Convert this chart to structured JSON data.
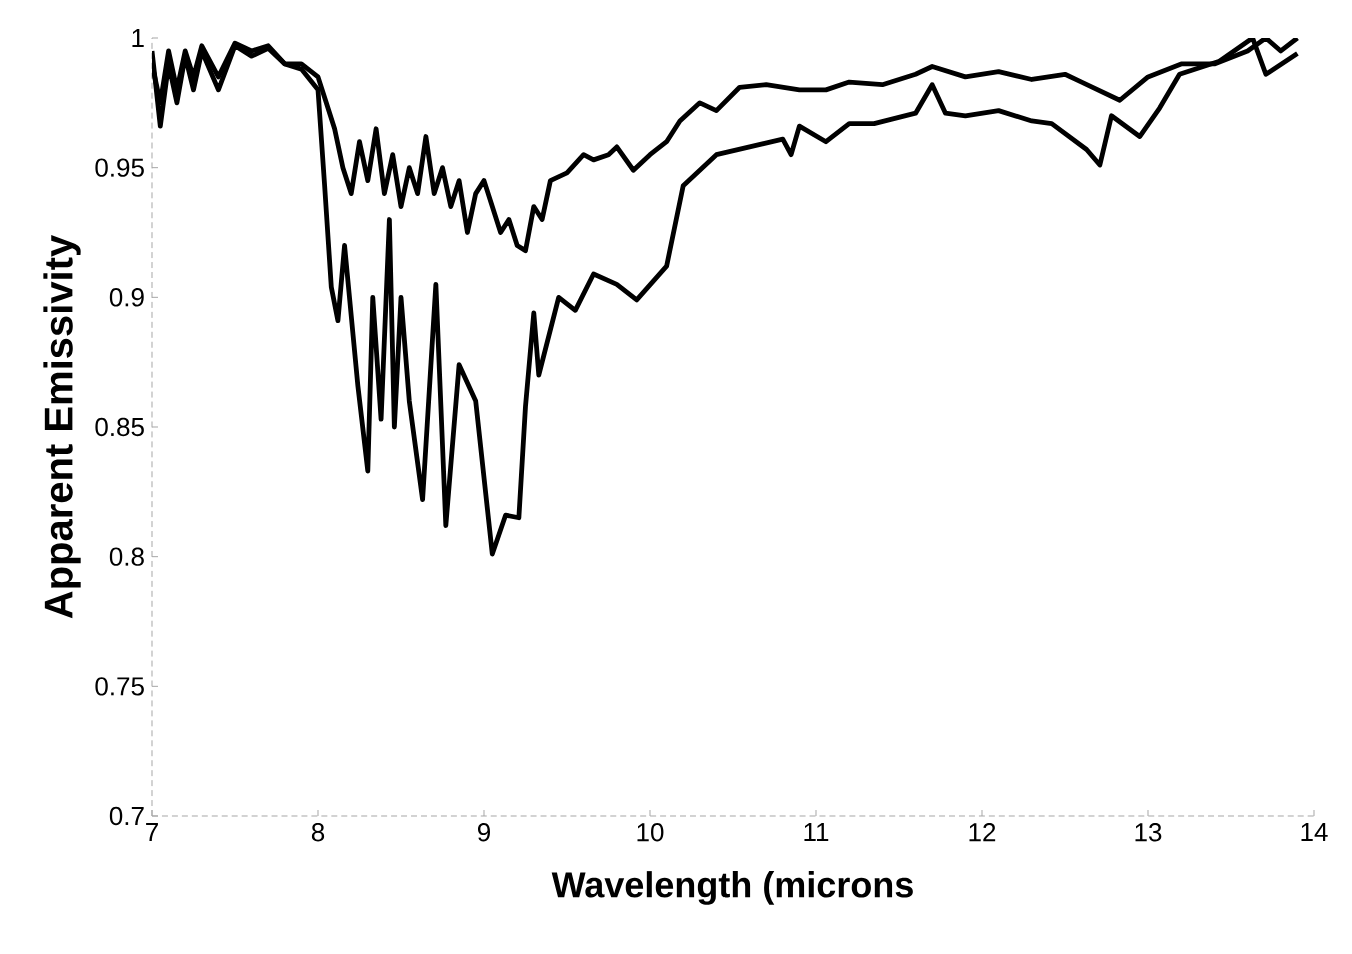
{
  "chart_data": {
    "type": "line",
    "xlabel": "Wavelength (microns",
    "ylabel": "Apparent Emissivity",
    "xlim": [
      7,
      14
    ],
    "ylim": [
      0.7,
      1
    ],
    "xticks": [
      7,
      8,
      9,
      10,
      11,
      12,
      13,
      14
    ],
    "yticks": [
      0.7,
      0.75,
      0.8,
      0.85,
      0.9,
      0.95,
      1
    ],
    "grid": false,
    "marker": "none",
    "line_style": "solid",
    "series": [
      {
        "color": "#000000",
        "x": [
          7.0,
          7.05,
          7.1,
          7.15,
          7.2,
          7.25,
          7.3,
          7.4,
          7.5,
          7.6,
          7.7,
          7.8,
          7.9,
          8.0,
          8.05,
          8.1,
          8.15,
          8.2,
          8.25,
          8.3,
          8.35,
          8.4,
          8.45,
          8.5,
          8.55,
          8.6,
          8.65,
          8.7,
          8.75,
          8.8,
          8.85,
          8.9,
          8.95,
          9.0,
          9.05,
          9.1,
          9.15,
          9.2,
          9.25,
          9.3,
          9.35,
          9.4,
          9.5,
          9.6,
          9.66,
          9.75,
          9.8,
          9.9,
          10.0,
          10.1,
          10.18,
          10.3,
          10.4,
          10.54,
          10.7,
          10.9,
          11.06,
          11.2,
          11.4,
          11.6,
          11.7,
          11.9,
          12.1,
          12.3,
          12.5,
          12.6,
          12.83,
          13.0,
          13.2,
          13.4,
          13.6,
          13.71,
          13.8,
          13.9
        ],
        "values": [
          0.99,
          0.975,
          0.995,
          0.98,
          0.995,
          0.985,
          0.997,
          0.985,
          0.998,
          0.995,
          0.997,
          0.99,
          0.99,
          0.985,
          0.975,
          0.965,
          0.95,
          0.94,
          0.96,
          0.945,
          0.965,
          0.94,
          0.955,
          0.935,
          0.95,
          0.94,
          0.962,
          0.94,
          0.95,
          0.935,
          0.945,
          0.925,
          0.94,
          0.945,
          0.935,
          0.925,
          0.93,
          0.92,
          0.918,
          0.935,
          0.93,
          0.945,
          0.948,
          0.955,
          0.953,
          0.955,
          0.958,
          0.949,
          0.955,
          0.96,
          0.968,
          0.975,
          0.972,
          0.981,
          0.982,
          0.98,
          0.98,
          0.983,
          0.982,
          0.986,
          0.989,
          0.985,
          0.987,
          0.984,
          0.986,
          0.983,
          0.976,
          0.985,
          0.99,
          0.99,
          0.995,
          1.0,
          0.995,
          1.0
        ]
      },
      {
        "color": "#000000",
        "x": [
          7.0,
          7.05,
          7.1,
          7.15,
          7.2,
          7.25,
          7.3,
          7.4,
          7.5,
          7.6,
          7.7,
          7.8,
          7.9,
          8.0,
          8.04,
          8.08,
          8.12,
          8.16,
          8.24,
          8.3,
          8.33,
          8.38,
          8.43,
          8.46,
          8.5,
          8.55,
          8.63,
          8.71,
          8.77,
          8.85,
          8.95,
          9.05,
          9.13,
          9.21,
          9.25,
          9.3,
          9.33,
          9.45,
          9.55,
          9.66,
          9.8,
          9.92,
          10.1,
          10.2,
          10.4,
          10.6,
          10.8,
          10.85,
          10.9,
          11.06,
          11.2,
          11.35,
          11.6,
          11.7,
          11.78,
          11.9,
          12.1,
          12.3,
          12.42,
          12.63,
          12.71,
          12.78,
          12.95,
          13.07,
          13.19,
          13.43,
          13.63,
          13.71,
          13.9
        ],
        "values": [
          0.995,
          0.966,
          0.99,
          0.975,
          0.993,
          0.98,
          0.995,
          0.98,
          0.997,
          0.993,
          0.996,
          0.99,
          0.988,
          0.98,
          0.943,
          0.904,
          0.891,
          0.92,
          0.866,
          0.833,
          0.9,
          0.853,
          0.93,
          0.85,
          0.9,
          0.86,
          0.822,
          0.905,
          0.812,
          0.874,
          0.86,
          0.801,
          0.816,
          0.815,
          0.858,
          0.894,
          0.87,
          0.9,
          0.895,
          0.909,
          0.905,
          0.899,
          0.912,
          0.943,
          0.955,
          0.958,
          0.961,
          0.955,
          0.966,
          0.96,
          0.967,
          0.967,
          0.971,
          0.982,
          0.971,
          0.97,
          0.972,
          0.968,
          0.967,
          0.957,
          0.951,
          0.97,
          0.962,
          0.973,
          0.986,
          0.991,
          1.0,
          0.986,
          0.994
        ]
      }
    ]
  }
}
